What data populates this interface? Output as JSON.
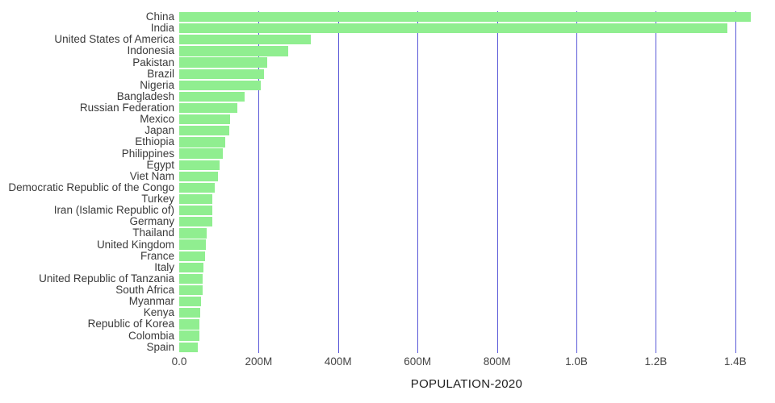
{
  "chart_data": {
    "type": "bar",
    "orientation": "horizontal",
    "title": "",
    "xlabel": "POPULATION-2020",
    "ylabel": "",
    "xlim": [
      0,
      1500000000
    ],
    "grid": true,
    "legend": false,
    "bar_color": "#90ee90",
    "gridline_color": "#5a59d8",
    "x_ticks": [
      {
        "label": "0.0",
        "value": 0
      },
      {
        "label": "200M",
        "value": 200000000
      },
      {
        "label": "400M",
        "value": 400000000
      },
      {
        "label": "600M",
        "value": 600000000
      },
      {
        "label": "800M",
        "value": 800000000
      },
      {
        "label": "1.0B",
        "value": 1000000000
      },
      {
        "label": "1.2B",
        "value": 1200000000
      },
      {
        "label": "1.4B",
        "value": 1400000000
      }
    ],
    "categories": [
      "China",
      "India",
      "United States of America",
      "Indonesia",
      "Pakistan",
      "Brazil",
      "Nigeria",
      "Bangladesh",
      "Russian Federation",
      "Mexico",
      "Japan",
      "Ethiopia",
      "Philippines",
      "Egypt",
      "Viet Nam",
      "Democratic Republic of the Congo",
      "Turkey",
      "Iran (Islamic Republic of)",
      "Germany",
      "Thailand",
      "United Kingdom",
      "France",
      "Italy",
      "United Republic of Tanzania",
      "South Africa",
      "Myanmar",
      "Kenya",
      "Republic of Korea",
      "Colombia",
      "Spain"
    ],
    "values": [
      1439323776,
      1380004385,
      331002651,
      273523615,
      220892340,
      212559417,
      206139589,
      164689383,
      145934462,
      128932753,
      126476461,
      114963588,
      109581078,
      102334404,
      97338579,
      89561403,
      84339067,
      83992949,
      83783942,
      69799978,
      67886011,
      65273511,
      60461826,
      59734218,
      59308690,
      54409800,
      53771296,
      51269185,
      50882891,
      46754778
    ]
  }
}
